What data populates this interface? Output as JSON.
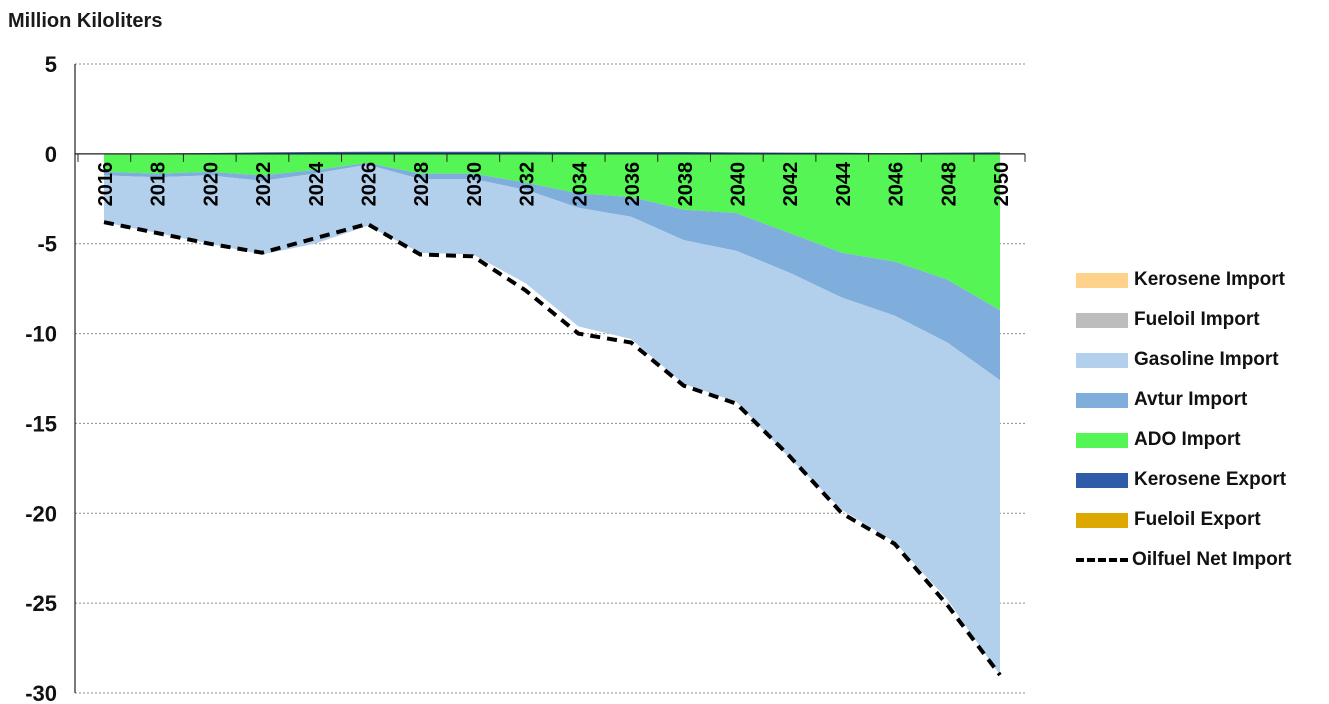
{
  "chart_data": {
    "type": "area",
    "ylabel": "Million Kiloliters",
    "xlabel": "",
    "ylim": [
      -30,
      5
    ],
    "yticks": [
      5,
      0,
      -5,
      -10,
      -15,
      -20,
      -25,
      -30
    ],
    "x": [
      2016,
      2018,
      2020,
      2022,
      2024,
      2026,
      2028,
      2030,
      2032,
      2034,
      2036,
      2038,
      2040,
      2042,
      2044,
      2046,
      2048,
      2050
    ],
    "grid": true,
    "legend_position": "right",
    "series": [
      {
        "name": "Kerosene Import",
        "color": "#FFD28C",
        "values": [
          0,
          0,
          0,
          0,
          0,
          0,
          0,
          0,
          0,
          0,
          0,
          0,
          0,
          0,
          0,
          0,
          0,
          0
        ]
      },
      {
        "name": "Fueloil Import",
        "color": "#BDBDBD",
        "values": [
          0,
          0,
          0,
          0,
          0,
          0,
          0,
          0,
          0,
          0,
          0,
          0,
          0,
          0,
          0,
          0,
          0,
          0
        ]
      },
      {
        "name": "Gasoline Import",
        "color": "#B2CFEC",
        "values": [
          -2.6,
          -3.1,
          -3.8,
          -4.1,
          -3.9,
          -3.4,
          -4.1,
          -4.2,
          -5.2,
          -6.6,
          -6.8,
          -8.0,
          -8.4,
          -10.3,
          -11.8,
          -12.6,
          -14.3,
          -16.4
        ]
      },
      {
        "name": "Avtur Import",
        "color": "#7FAEDC",
        "values": [
          -0.2,
          -0.2,
          -0.2,
          -0.3,
          -0.2,
          -0.1,
          -0.3,
          -0.3,
          -0.4,
          -0.8,
          -1.1,
          -1.7,
          -2.1,
          -2.2,
          -2.5,
          -3.0,
          -3.5,
          -3.9
        ]
      },
      {
        "name": "ADO Import",
        "color": "#55F555",
        "values": [
          -1.0,
          -1.1,
          -1.0,
          -1.2,
          -0.9,
          -0.5,
          -1.1,
          -1.1,
          -1.6,
          -2.2,
          -2.4,
          -3.1,
          -3.3,
          -4.4,
          -5.5,
          -6.0,
          -7.0,
          -8.7
        ]
      },
      {
        "name": "Kerosene Export",
        "color": "#2F5CA8",
        "values": [
          0,
          0.02,
          0.05,
          0.08,
          0.1,
          0.12,
          0.12,
          0.12,
          0.12,
          0.1,
          0.1,
          0.1,
          0.08,
          0.07,
          0.06,
          0.04,
          0.07,
          0.08
        ]
      },
      {
        "name": "Fueloil Export",
        "color": "#DDA800",
        "values": [
          0,
          0,
          0,
          0,
          0,
          0,
          0,
          0,
          0,
          0,
          0,
          0,
          0,
          0,
          0,
          0,
          0,
          0
        ]
      }
    ],
    "net_import": {
      "name": "Oilfuel Net Import",
      "values": [
        -3.8,
        -4.4,
        -5.0,
        -5.5,
        -4.7,
        -3.9,
        -5.6,
        -5.7,
        -7.6,
        -10.0,
        -10.5,
        -12.9,
        -13.9,
        -16.8,
        -20.0,
        -21.7,
        -25.1,
        -29.0
      ]
    }
  }
}
